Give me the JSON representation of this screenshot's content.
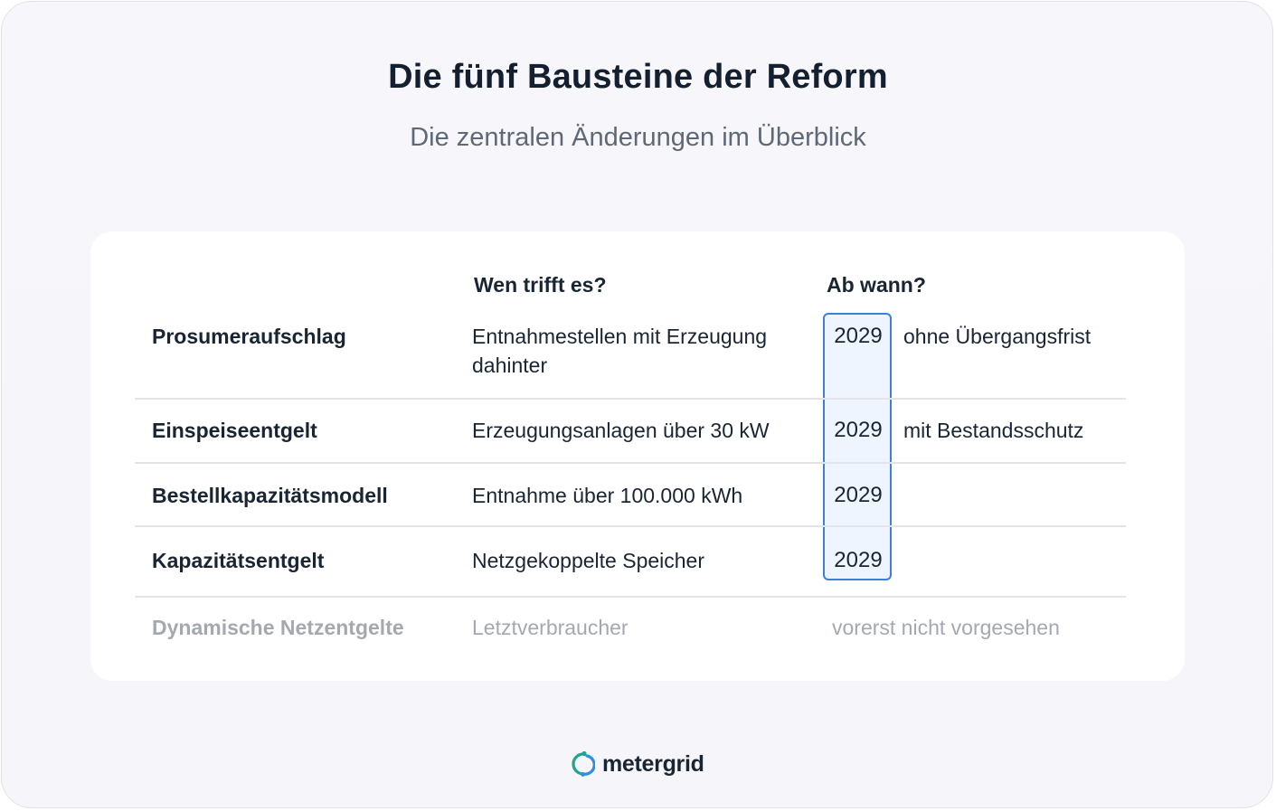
{
  "header": {
    "title": "Die fünf Bausteine der Reform",
    "subtitle": "Die zentralen Änderungen im Überblick"
  },
  "table": {
    "columns": [
      "Wen trifft es?",
      "Ab wann?"
    ],
    "rows": [
      {
        "name": "Prosumeraufschlag",
        "who": "Entnahmestellen mit Erzeugung dahinter",
        "year": "2029",
        "note": "ohne Übergangsfrist",
        "active": true
      },
      {
        "name": "Einspeiseentgelt",
        "who": "Erzeugungsanlagen über 30 kW",
        "year": "2029",
        "note": "mit Bestandsschutz",
        "active": true
      },
      {
        "name": "Bestellkapazitätsmodell",
        "who": "Entnahme über 100.000 kWh",
        "year": "2029",
        "note": "",
        "active": true
      },
      {
        "name": "Kapazitätsentgelt",
        "who": "Netzgekoppelte Speicher",
        "year": "2029",
        "note": "",
        "active": true
      },
      {
        "name": "Dynamische Netzentgelte",
        "who": "Letztverbraucher",
        "year": "",
        "note": "vorerst nicht vorgesehen",
        "active": false
      }
    ]
  },
  "brand": {
    "name": "metergrid",
    "accent_colors": [
      "#1aa98c",
      "#2f8fe0"
    ]
  },
  "colors": {
    "highlight_border": "#3d7fd9",
    "highlight_fill": "#eef5fe",
    "text": "#1a2533",
    "muted": "#a4a8af"
  }
}
